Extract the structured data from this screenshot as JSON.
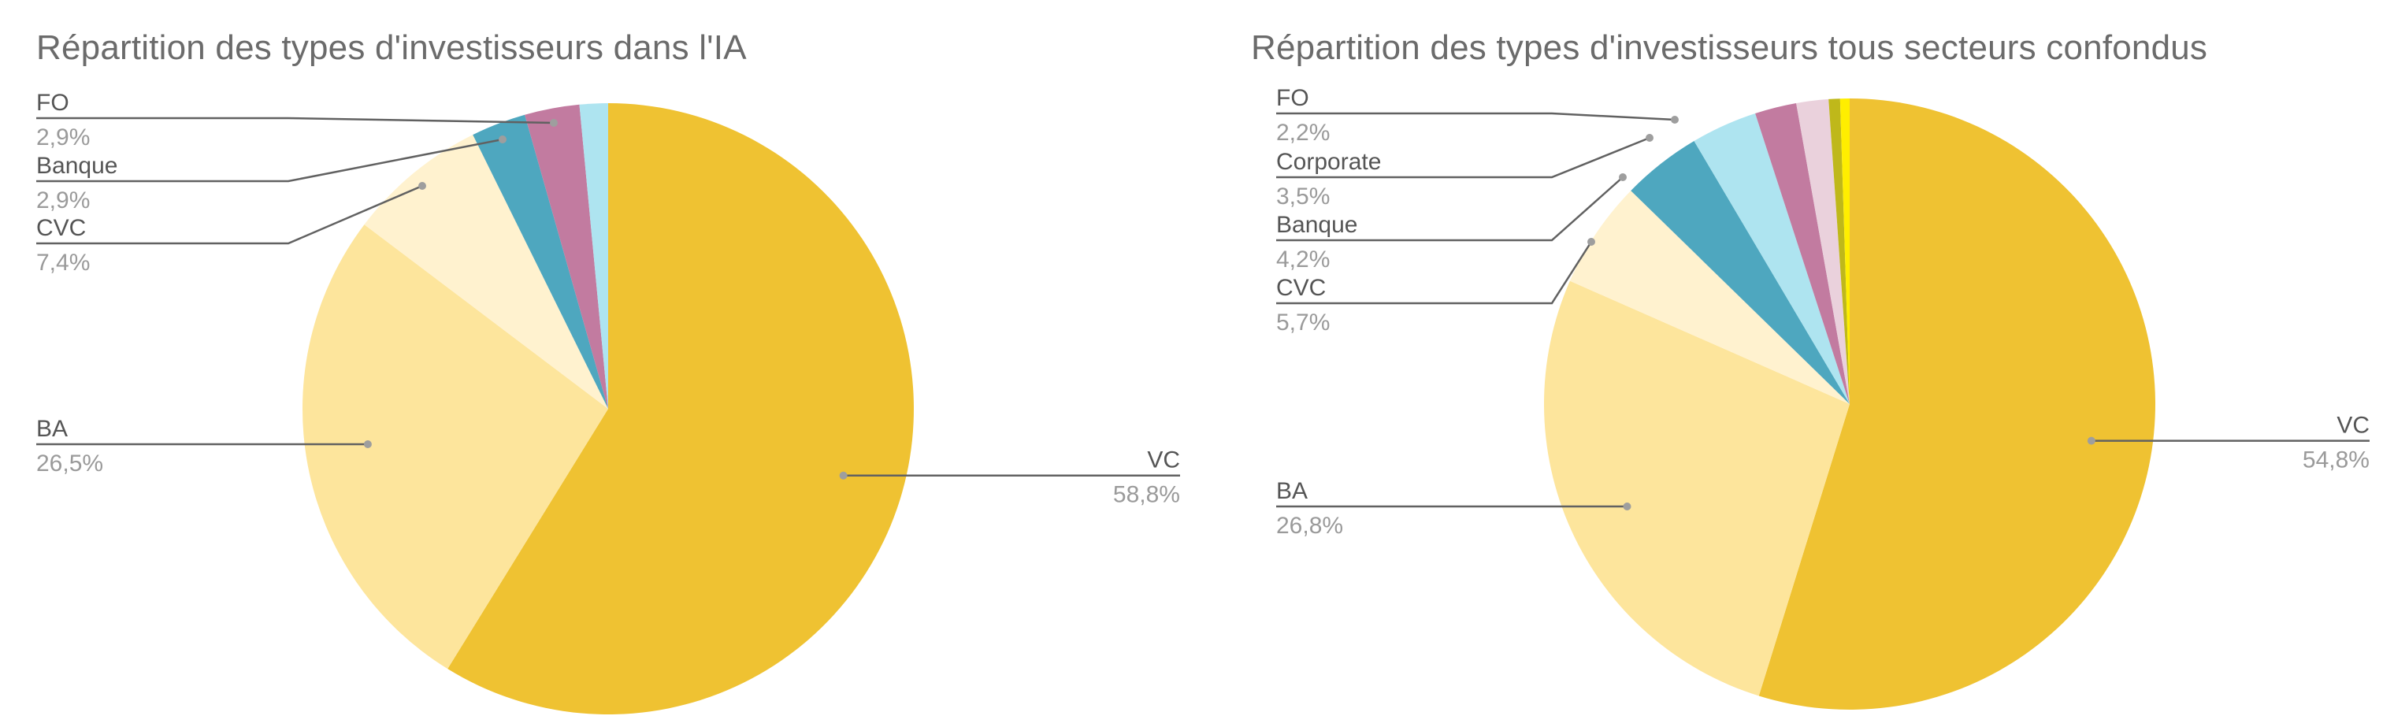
{
  "chart_data": [
    {
      "type": "pie",
      "title": "Répartition des types d'investisseurs dans l'IA",
      "slices": [
        {
          "label": "VC",
          "value": 58.8,
          "value_label": "58,8%",
          "color": "#efc232"
        },
        {
          "label": "BA",
          "value": 26.5,
          "value_label": "26,5%",
          "color": "#fde59c"
        },
        {
          "label": "CVC",
          "value": 7.4,
          "value_label": "7,4%",
          "color": "#fff2cf"
        },
        {
          "label": "Banque",
          "value": 2.9,
          "value_label": "2,9%",
          "color": "#4ea7bf"
        },
        {
          "label": "FO",
          "value": 2.9,
          "value_label": "2,9%",
          "color": "#c27ba0"
        },
        {
          "label": "",
          "value": 1.5,
          "value_label": "",
          "color": "#aee4f0"
        }
      ]
    },
    {
      "type": "pie",
      "title": "Répartition des types d'investisseurs tous secteurs confondus",
      "slices": [
        {
          "label": "VC",
          "value": 54.8,
          "value_label": "54,8%",
          "color": "#efc232"
        },
        {
          "label": "BA",
          "value": 26.8,
          "value_label": "26,8%",
          "color": "#fde59c"
        },
        {
          "label": "CVC",
          "value": 5.7,
          "value_label": "5,7%",
          "color": "#fff2cf"
        },
        {
          "label": "Banque",
          "value": 4.2,
          "value_label": "4,2%",
          "color": "#4ea7bf"
        },
        {
          "label": "Corporate",
          "value": 3.5,
          "value_label": "3,5%",
          "color": "#aee4f0"
        },
        {
          "label": "FO",
          "value": 2.2,
          "value_label": "2,2%",
          "color": "#c27ba0"
        },
        {
          "label": "",
          "value": 1.7,
          "value_label": "",
          "color": "#ead1dc"
        },
        {
          "label": "",
          "value": 0.6,
          "value_label": "",
          "color": "#bfb81a"
        },
        {
          "label": "",
          "value": 0.5,
          "value_label": "",
          "color": "#ffee00"
        }
      ]
    }
  ]
}
